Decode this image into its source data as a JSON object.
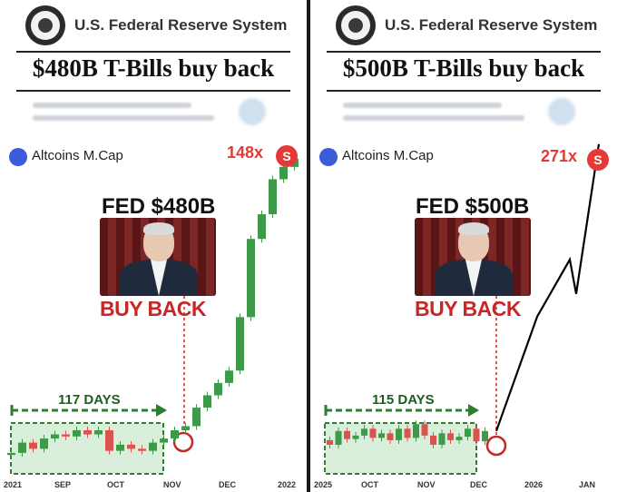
{
  "colors": {
    "up": "#3d9a48",
    "down": "#d9534f",
    "accent": "#e53935",
    "green_dark": "#1b5e20",
    "box_fill": "#d9eedb"
  },
  "panels": [
    {
      "org": "U.S. Federal Reserve System",
      "headline": "$480B T-Bills buy back",
      "coin_label": "Altcoins M.Cap",
      "multiplier": "148x",
      "badge": "S",
      "fed_title": "FED $480B",
      "buy_back": "BUY BACK",
      "days": "117 DAYS",
      "x_labels": [
        "2021",
        "SEP",
        "OCT",
        "NOV",
        "DEC",
        "2022"
      ]
    },
    {
      "org": "U.S. Federal Reserve System",
      "headline": "$500B T-Bills buy back",
      "coin_label": "Altcoins M.Cap",
      "multiplier": "271x",
      "badge": "S",
      "fed_title": "FED $500B",
      "buy_back": "BUY BACK",
      "days": "115 DAYS",
      "x_labels": [
        "2025",
        "OCT",
        "NOV",
        "DEC",
        "2026",
        "JAN"
      ]
    }
  ],
  "chart_data": [
    {
      "type": "candlestick",
      "title": "Altcoins M.Cap",
      "annotation": "148x",
      "ylim": [
        0,
        150
      ],
      "candles": [
        {
          "o": 3,
          "c": 4
        },
        {
          "o": 4,
          "c": 9
        },
        {
          "o": 9,
          "c": 6
        },
        {
          "o": 6,
          "c": 11
        },
        {
          "o": 11,
          "c": 13
        },
        {
          "o": 13,
          "c": 12
        },
        {
          "o": 12,
          "c": 15
        },
        {
          "o": 15,
          "c": 13
        },
        {
          "o": 13,
          "c": 15
        },
        {
          "o": 15,
          "c": 5
        },
        {
          "o": 5,
          "c": 8
        },
        {
          "o": 8,
          "c": 6
        },
        {
          "o": 6,
          "c": 5
        },
        {
          "o": 5,
          "c": 9
        },
        {
          "o": 9,
          "c": 11
        },
        {
          "o": 11,
          "c": 15
        },
        {
          "o": 15,
          "c": 17
        },
        {
          "o": 17,
          "c": 26
        },
        {
          "o": 26,
          "c": 32
        },
        {
          "o": 32,
          "c": 38
        },
        {
          "o": 38,
          "c": 44
        },
        {
          "o": 44,
          "c": 70
        },
        {
          "o": 70,
          "c": 108
        },
        {
          "o": 108,
          "c": 120
        },
        {
          "o": 120,
          "c": 137
        },
        {
          "o": 137,
          "c": 143
        },
        {
          "o": 143,
          "c": 147
        }
      ]
    },
    {
      "type": "candlestick",
      "title": "Altcoins M.Cap",
      "annotation": "271x",
      "ylim": [
        0,
        270
      ],
      "candles": [
        {
          "o": 12,
          "c": 8
        },
        {
          "o": 8,
          "c": 20
        },
        {
          "o": 20,
          "c": 13
        },
        {
          "o": 13,
          "c": 16
        },
        {
          "o": 16,
          "c": 22
        },
        {
          "o": 22,
          "c": 14
        },
        {
          "o": 14,
          "c": 18
        },
        {
          "o": 18,
          "c": 12
        },
        {
          "o": 12,
          "c": 22
        },
        {
          "o": 22,
          "c": 14
        },
        {
          "o": 14,
          "c": 26
        },
        {
          "o": 26,
          "c": 16
        },
        {
          "o": 16,
          "c": 8
        },
        {
          "o": 8,
          "c": 18
        },
        {
          "o": 18,
          "c": 12
        },
        {
          "o": 12,
          "c": 15
        },
        {
          "o": 15,
          "c": 22
        },
        {
          "o": 22,
          "c": 11
        },
        {
          "o": 11,
          "c": 20
        }
      ],
      "projection": [
        20,
        120,
        170,
        140,
        271
      ]
    }
  ]
}
